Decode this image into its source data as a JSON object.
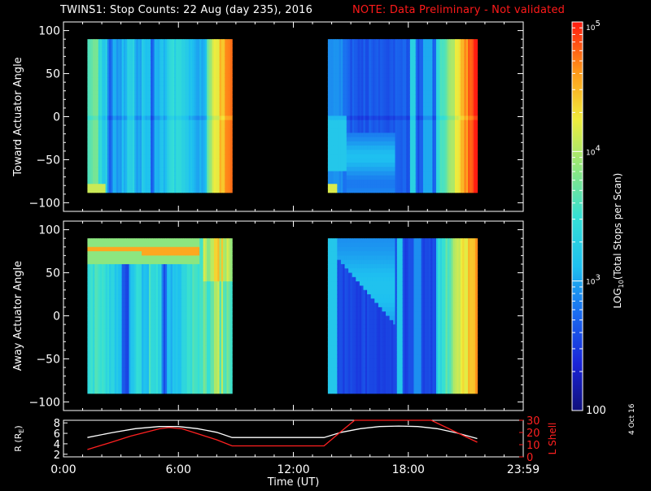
{
  "header": {
    "title": "TWINS1: Stop Counts: 22 Aug (day 235), 2016",
    "note": "NOTE: Data Preliminary - Not validated"
  },
  "footer": {
    "date_stamp": "4 Oct 16"
  },
  "colors": {
    "background": "#000000",
    "axes": "#ffffff",
    "note": "#ff1a1a",
    "l_shell": "#ff2020",
    "r_line": "#ffffff"
  },
  "chart_data": [
    {
      "id": "toward",
      "type": "heatmap",
      "ylabel": "Toward Actuator Angle",
      "ylim": [
        -110,
        110
      ],
      "yticks": [
        100,
        50,
        0,
        -50,
        -100
      ],
      "xlim": [
        0,
        24
      ],
      "angle_range": [
        -88,
        90
      ],
      "data_blocks": [
        {
          "start_ut": 1.25,
          "end_ut": 8.8
        },
        {
          "start_ut": 13.8,
          "end_ut": 21.6
        }
      ],
      "profile": "toward"
    },
    {
      "id": "away",
      "type": "heatmap",
      "ylabel": "Away Actuator Angle",
      "ylim": [
        -110,
        110
      ],
      "yticks": [
        100,
        50,
        0,
        -50,
        -100
      ],
      "xlim": [
        0,
        24
      ],
      "angle_range": [
        -90,
        90
      ],
      "data_blocks": [
        {
          "start_ut": 1.25,
          "end_ut": 8.8
        },
        {
          "start_ut": 13.8,
          "end_ut": 21.6
        }
      ],
      "profile": "away"
    },
    {
      "id": "orbit",
      "type": "line",
      "xlabel": "Time (UT)",
      "xlim": [
        0,
        24
      ],
      "xtick_values": [
        0,
        6,
        12,
        18,
        24
      ],
      "xtick_labels": [
        "0:00",
        "6:00",
        "12:00",
        "18:00",
        "23:59"
      ],
      "ylabel_left": "R (R",
      "ylabel_left_sub": "E",
      "ylabel_left_close": ")",
      "ylim_left": [
        1.5,
        8.5
      ],
      "yticks_left": [
        8,
        6,
        4,
        2
      ],
      "ylabel_right": "L Shell",
      "ylim_right": [
        0,
        30
      ],
      "yticks_right": [
        30,
        20,
        10,
        0
      ],
      "series": [
        {
          "name": "R",
          "axis": "left",
          "color": "#ffffff",
          "x": [
            1.25,
            2.5,
            3.75,
            5.0,
            6.0,
            7.0,
            8.0,
            8.8,
            10.0,
            12.0,
            13.6,
            14.5,
            15.5,
            16.5,
            17.5,
            18.5,
            19.5,
            20.5,
            21.6
          ],
          "y": [
            5.2,
            6.1,
            6.9,
            7.3,
            7.3,
            6.9,
            6.2,
            5.2,
            5.2,
            5.2,
            5.2,
            6.2,
            6.9,
            7.3,
            7.4,
            7.3,
            6.9,
            6.1,
            5.0
          ]
        },
        {
          "name": "L Shell",
          "axis": "right",
          "color": "#ff2020",
          "x": [
            1.25,
            2.5,
            3.5,
            4.5,
            5.0,
            5.5,
            6.2,
            7.0,
            8.0,
            8.8,
            13.6,
            14.5,
            15.2,
            15.3,
            19.0,
            19.2,
            21.6
          ],
          "y": [
            6,
            12,
            17,
            21,
            23,
            24,
            23,
            19,
            14,
            9,
            9,
            21,
            30,
            30,
            30,
            30,
            12
          ]
        }
      ]
    }
  ],
  "colorbar": {
    "label_parts": [
      "LOG",
      "10",
      "(Total Stops per Scan)"
    ],
    "top_label_base": "10",
    "top_label_exp": "5",
    "label_1e4_base": "10",
    "label_1e4_exp": "4",
    "label_1e3_base": "10",
    "label_1e3_exp": "3",
    "bottom_label": "100",
    "range_log": [
      2,
      5
    ],
    "scale": "log"
  }
}
